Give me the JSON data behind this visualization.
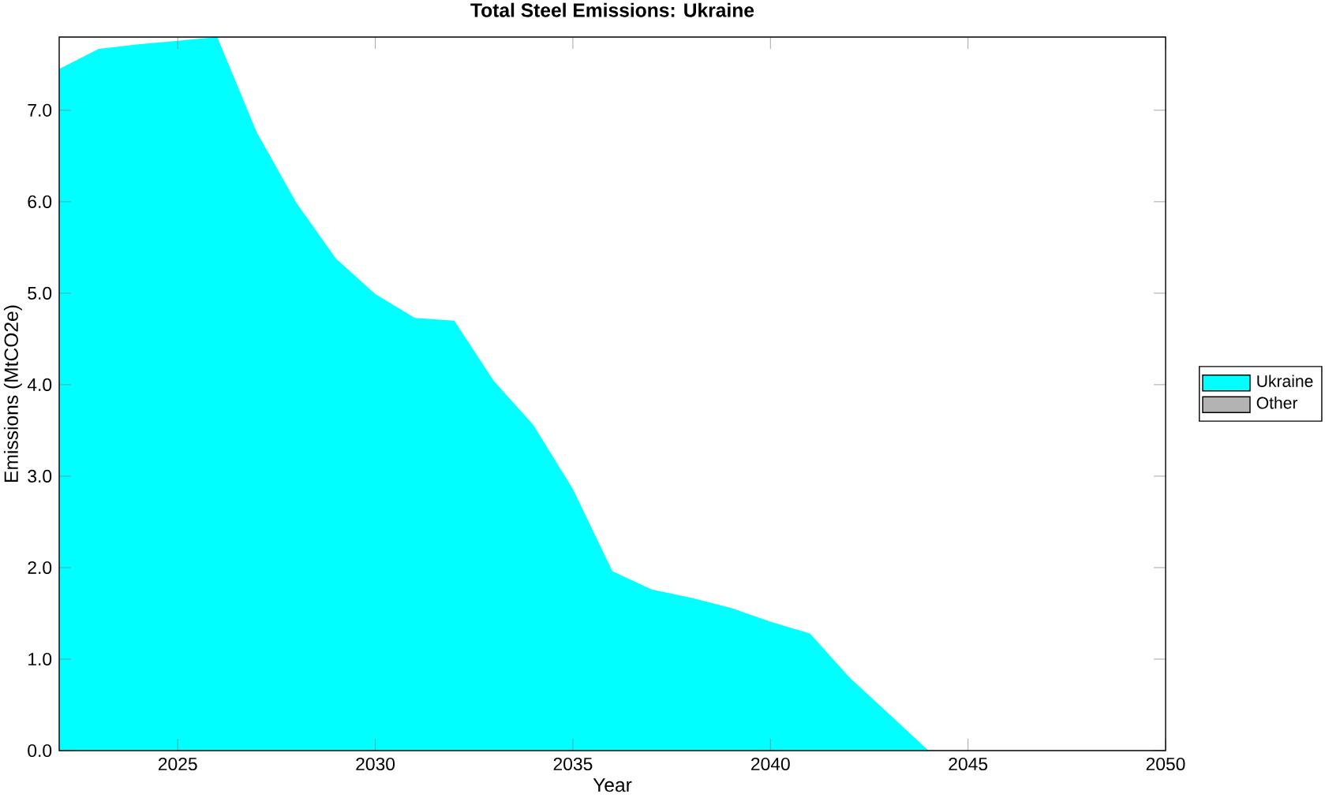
{
  "chart_data": {
    "type": "area",
    "title": "Total Steel Emissions: Ukraine",
    "xlabel": "Year",
    "ylabel": "Emissions (MtCO2e)",
    "x": [
      2022,
      2023,
      2024,
      2025,
      2026,
      2027,
      2028,
      2029,
      2030,
      2031,
      2032,
      2033,
      2034,
      2035,
      2036,
      2037,
      2038,
      2039,
      2040,
      2041,
      2042,
      2043,
      2044,
      2045,
      2046,
      2047,
      2048,
      2049,
      2050
    ],
    "series": [
      {
        "name": "Ukraine",
        "color": "#00ffff",
        "values": [
          7.45,
          7.67,
          7.72,
          7.76,
          7.8,
          6.76,
          5.99,
          5.38,
          4.99,
          4.73,
          4.7,
          4.04,
          3.56,
          2.86,
          1.96,
          1.76,
          1.67,
          1.56,
          1.41,
          1.28,
          0.8,
          0.4,
          0,
          0,
          0,
          0,
          0,
          0,
          0
        ]
      },
      {
        "name": "Other",
        "color": "#b3b3b3",
        "values": [
          null,
          null,
          null,
          null,
          null,
          null,
          null,
          null,
          null,
          null,
          null,
          null,
          null,
          null,
          null,
          null,
          null,
          null,
          null,
          null,
          null,
          null,
          null,
          null,
          null,
          null,
          null,
          null,
          null
        ]
      }
    ],
    "legend": "right",
    "xlim": [
      2022,
      2050
    ],
    "xticks": [
      2025,
      2030,
      2035,
      2040,
      2045,
      2050
    ],
    "ylim": [
      0,
      7.8
    ],
    "yticks": [
      {
        "value": 0,
        "label": "0.0"
      },
      {
        "value": 1,
        "label": "1.0"
      },
      {
        "value": 2,
        "label": "2.0"
      },
      {
        "value": 3,
        "label": "3.0"
      },
      {
        "value": 4,
        "label": "4.0"
      },
      {
        "value": 5,
        "label": "5.0"
      },
      {
        "value": 6,
        "label": "6.0"
      },
      {
        "value": 7,
        "label": "7.0"
      }
    ]
  }
}
